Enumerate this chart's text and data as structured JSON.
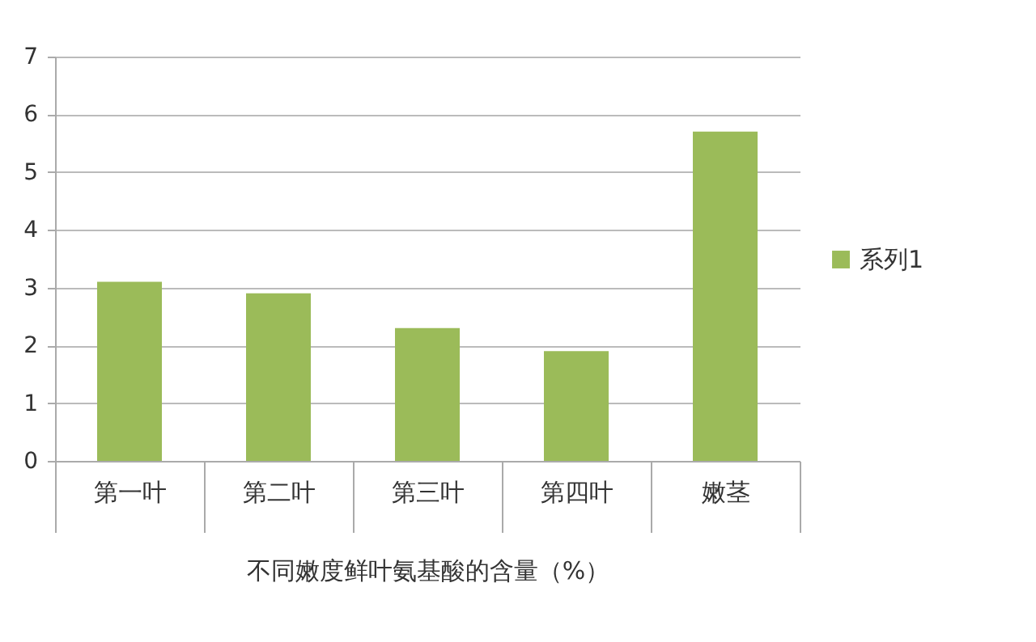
{
  "chart_data": {
    "type": "bar",
    "xlabel": "不同嫩度鲜叶氨基酸的含量（%）",
    "categories": [
      "第一叶",
      "第二叶",
      "第三叶",
      "第四叶",
      "嫩茎"
    ],
    "series": [
      {
        "name": "系列1",
        "color": "#9bbb59",
        "values": [
          3.1,
          2.9,
          2.3,
          1.9,
          5.7
        ]
      }
    ],
    "ylim": [
      0,
      7
    ],
    "yticks": [
      0,
      1,
      2,
      3,
      4,
      5,
      6,
      7
    ],
    "grid": "y",
    "legend": "right"
  }
}
